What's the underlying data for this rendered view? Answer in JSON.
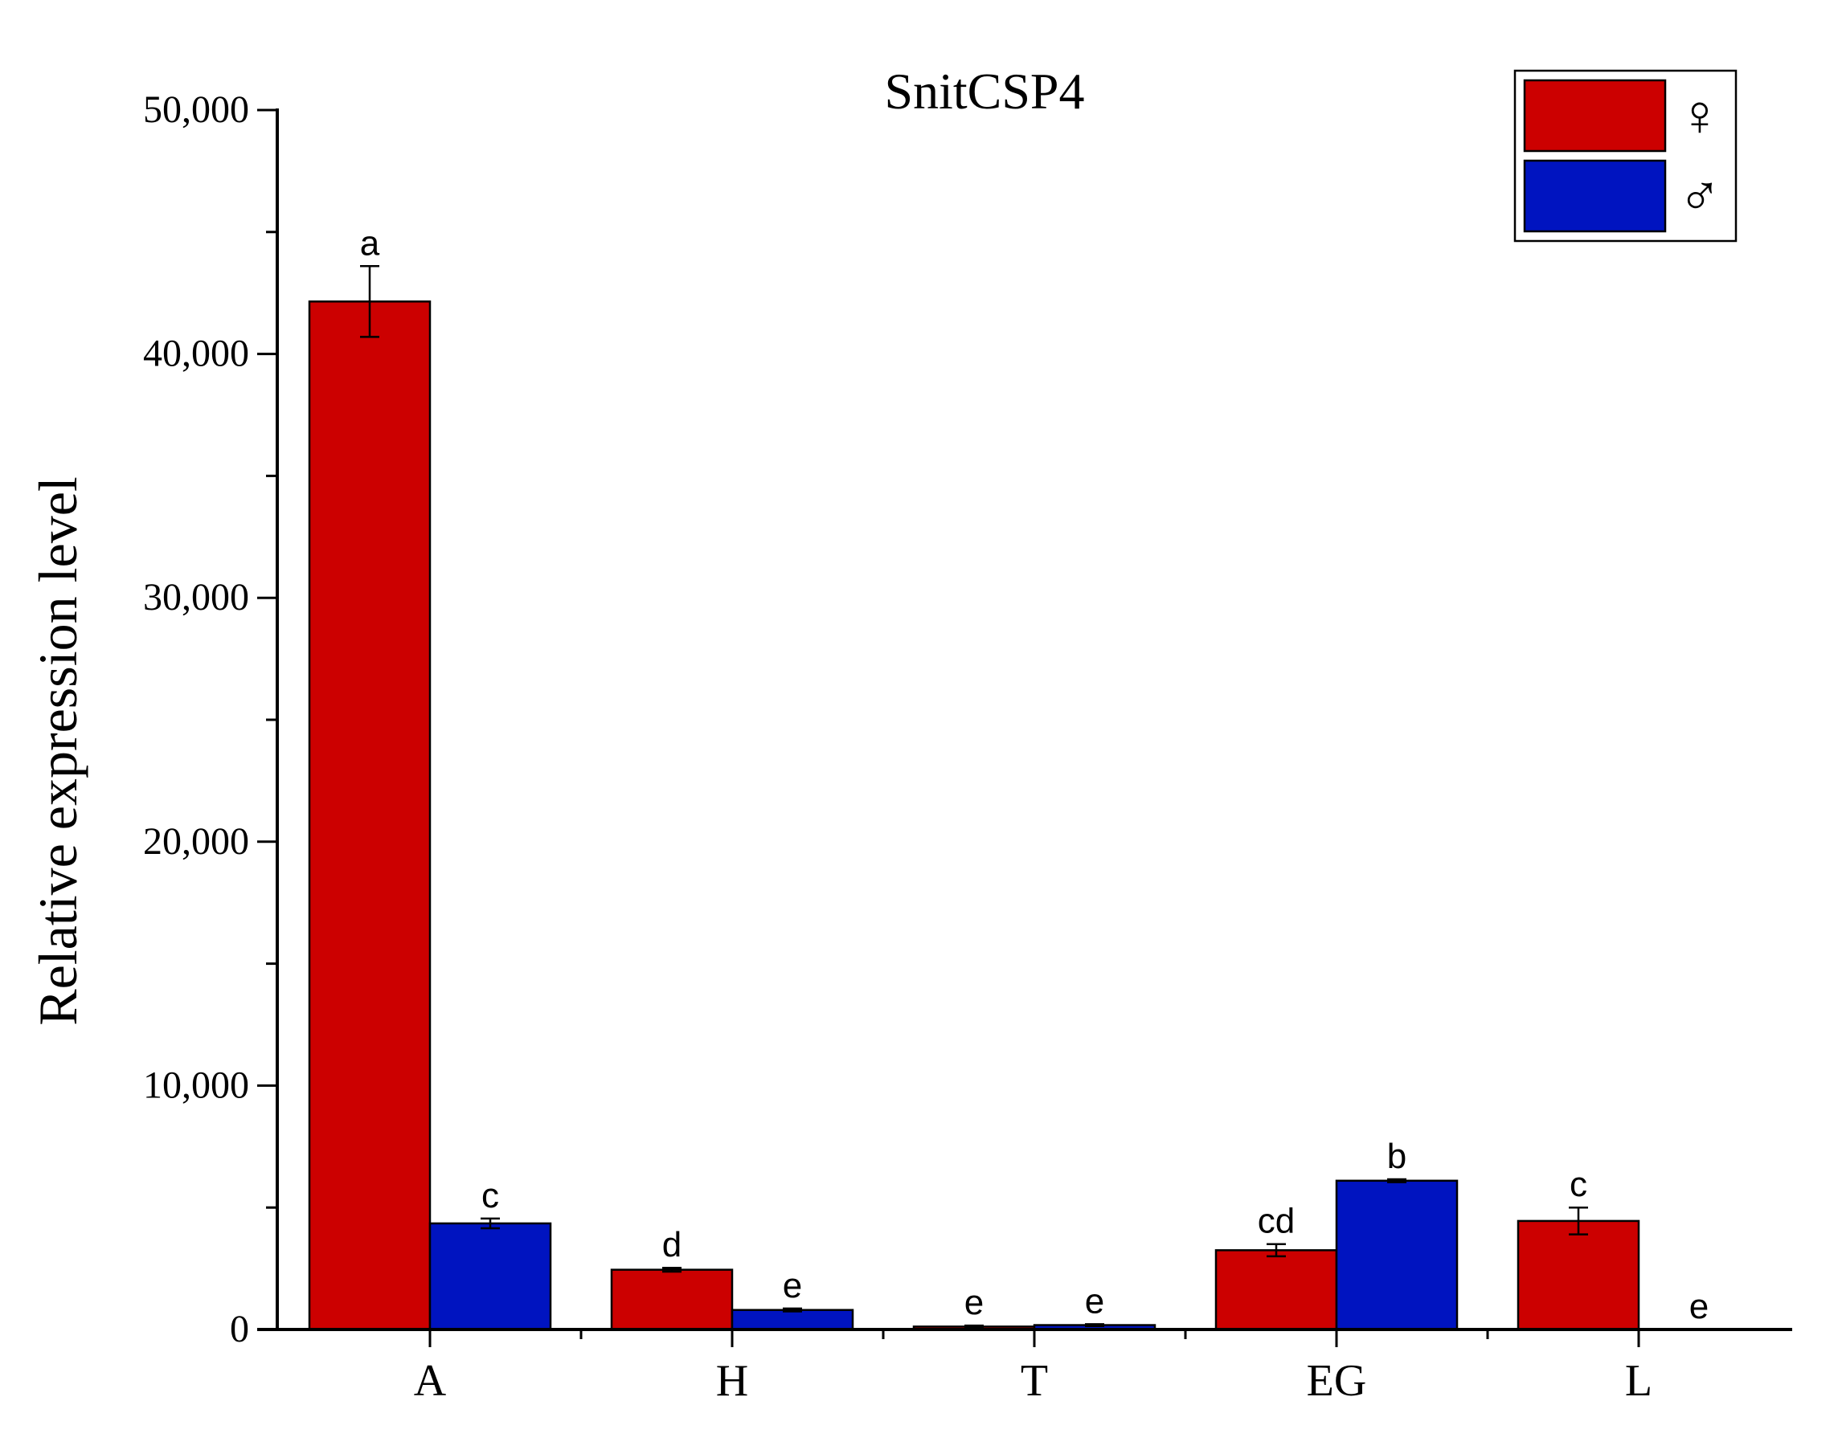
{
  "chart_data": {
    "type": "bar",
    "title": "SnitCSP4",
    "xlabel": "",
    "ylabel": "Relative expression level",
    "ylim": [
      0,
      50000
    ],
    "y_major_ticks": [
      0,
      10000,
      20000,
      30000,
      40000,
      50000
    ],
    "y_tick_labels": [
      "0",
      "10,000",
      "20,000",
      "30,000",
      "40,000",
      "50,000"
    ],
    "y_minor_step": 5000,
    "categories": [
      "A",
      "H",
      "T",
      "EG",
      "L"
    ],
    "series": [
      {
        "name": "♀",
        "color": "#cc0000",
        "values": [
          42150,
          2450,
          120,
          3250,
          4450
        ],
        "errors": [
          1450,
          80,
          40,
          250,
          550
        ],
        "labels": [
          "a",
          "d",
          "e",
          "cd",
          "c"
        ]
      },
      {
        "name": "♂",
        "color": "#0014c0",
        "values": [
          4350,
          800,
          180,
          6100,
          0
        ],
        "errors": [
          200,
          60,
          40,
          60,
          0
        ],
        "labels": [
          "c",
          "e",
          "e",
          "b",
          "e"
        ]
      }
    ],
    "legend_position": "top-right",
    "grid": false
  }
}
